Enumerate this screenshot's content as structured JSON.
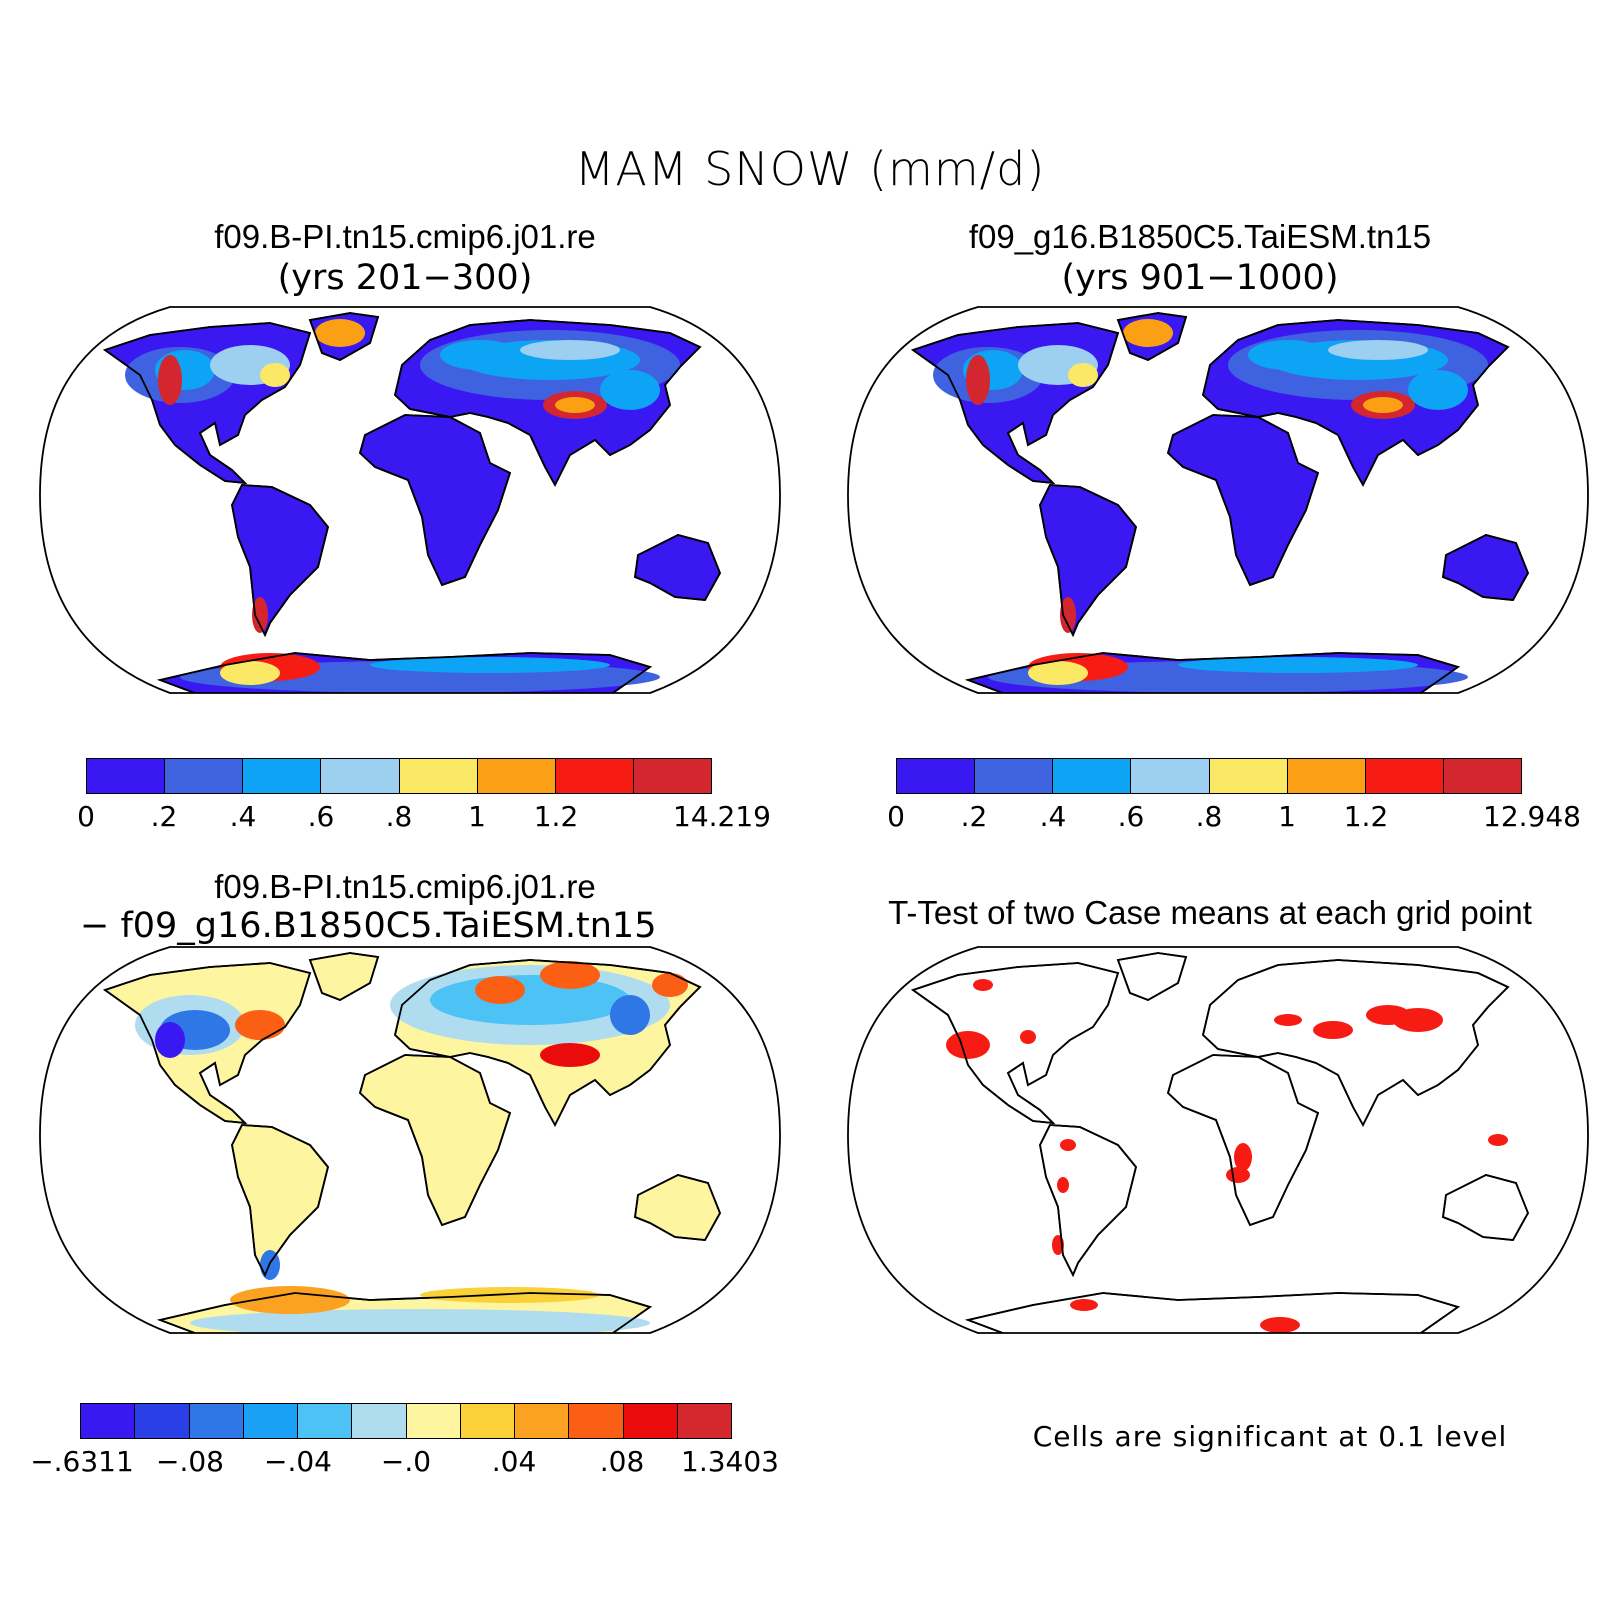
{
  "title": "MAM SNOW (mm/d)",
  "panels": [
    {
      "id": "tl",
      "title": "f09.B-PI.tn15.cmip6.j01.re",
      "subtitle": "(yrs 201−300)",
      "colorbar": {
        "colors": [
          "#3a18f2",
          "#3f63e0",
          "#0da4f5",
          "#9ccff0",
          "#fbe865",
          "#fb9f14",
          "#f61c14",
          "#d3262e"
        ],
        "labels": [
          "0",
          ".2",
          ".4",
          ".6",
          ".8",
          "1",
          "1.2",
          "14.219"
        ]
      }
    },
    {
      "id": "tr",
      "title": "f09_g16.B1850C5.TaiESM.tn15",
      "subtitle": "(yrs 901−1000)",
      "colorbar": {
        "colors": [
          "#3a18f2",
          "#3f63e0",
          "#0da4f5",
          "#9ccff0",
          "#fbe865",
          "#fb9f14",
          "#f61c14",
          "#d3262e"
        ],
        "labels": [
          "0",
          ".2",
          ".4",
          ".6",
          ".8",
          "1",
          "1.2",
          "12.948"
        ]
      }
    },
    {
      "id": "bl",
      "title": "f09.B-PI.tn15.cmip6.j01.re",
      "subtitle": "− f09_g16.B1850C5.TaiESM.tn15",
      "colorbar": {
        "colors": [
          "#3a18f2",
          "#2a3fe6",
          "#2f76e6",
          "#1aa0f5",
          "#4cc2f5",
          "#b0dcf0",
          "#fdf5a0",
          "#fbd13a",
          "#fba222",
          "#fb5f14",
          "#ea0c0c",
          "#d4282e"
        ],
        "labels": [
          "−.6311",
          "−.08",
          "−.04",
          "−.0",
          ".04",
          ".08",
          "1.3403"
        ]
      }
    },
    {
      "id": "br",
      "title": "T-Test of two Case means at each grid point",
      "note": "Cells are significant at 0.1 level"
    }
  ]
}
